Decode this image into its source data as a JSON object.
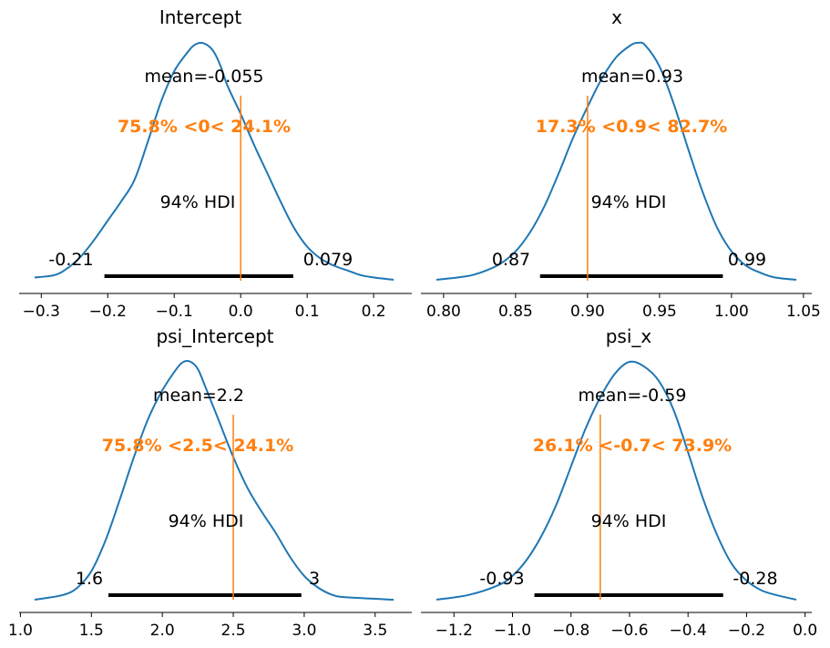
{
  "chart_data": [
    {
      "type": "line",
      "title": "Intercept",
      "xlim": [
        -0.31,
        0.23
      ],
      "xticks": [
        -0.3,
        -0.2,
        -0.1,
        0.0,
        0.1,
        0.2
      ],
      "xtick_labels": [
        "−0.3",
        "−0.2",
        "−0.1",
        "0.0",
        "0.1",
        "0.2"
      ],
      "density": {
        "x": [
          -0.31,
          -0.28,
          -0.26,
          -0.24,
          -0.22,
          -0.2,
          -0.18,
          -0.16,
          -0.14,
          -0.12,
          -0.1,
          -0.08,
          -0.07,
          -0.06,
          -0.05,
          -0.04,
          -0.03,
          -0.02,
          0.0,
          0.02,
          0.04,
          0.06,
          0.08,
          0.1,
          0.12,
          0.14,
          0.16,
          0.18,
          0.2,
          0.23
        ],
        "y": [
          0.01,
          0.02,
          0.05,
          0.1,
          0.17,
          0.25,
          0.33,
          0.42,
          0.58,
          0.75,
          0.88,
          0.96,
          0.99,
          1.0,
          0.99,
          0.96,
          0.9,
          0.82,
          0.7,
          0.57,
          0.45,
          0.33,
          0.22,
          0.14,
          0.09,
          0.06,
          0.04,
          0.02,
          0.01,
          0.0
        ]
      },
      "mean_label": "mean=-0.055",
      "ref_value": 0.0,
      "ref_label": "75.8% <0< 24.1%",
      "hdi": [
        -0.205,
        0.079
      ],
      "hdi_label": "94% HDI",
      "hdi_low_label": "-0.21",
      "hdi_high_label": "0.079"
    },
    {
      "type": "line",
      "title": "x",
      "xlim": [
        0.795,
        1.045
      ],
      "xticks": [
        0.8,
        0.85,
        0.9,
        0.95,
        1.0,
        1.05
      ],
      "xtick_labels": [
        "0.80",
        "0.85",
        "0.90",
        "0.95",
        "1.00",
        "1.05"
      ],
      "density": {
        "x": [
          0.795,
          0.81,
          0.82,
          0.83,
          0.84,
          0.85,
          0.86,
          0.87,
          0.88,
          0.89,
          0.9,
          0.91,
          0.92,
          0.93,
          0.935,
          0.94,
          0.95,
          0.96,
          0.97,
          0.98,
          0.99,
          1.0,
          1.01,
          1.02,
          1.03,
          1.045
        ],
        "y": [
          0.0,
          0.01,
          0.02,
          0.04,
          0.07,
          0.12,
          0.2,
          0.31,
          0.45,
          0.6,
          0.73,
          0.85,
          0.94,
          0.99,
          1.0,
          0.99,
          0.9,
          0.74,
          0.55,
          0.37,
          0.22,
          0.12,
          0.06,
          0.03,
          0.01,
          0.0
        ]
      },
      "mean_label": "mean=0.93",
      "ref_value": 0.9,
      "ref_label": "17.3% <0.9< 82.7%",
      "hdi": [
        0.867,
        0.994
      ],
      "hdi_label": "94% HDI",
      "hdi_low_label": "0.87",
      "hdi_high_label": "0.99"
    },
    {
      "type": "line",
      "title": "psi_Intercept",
      "xlim": [
        1.1,
        3.63
      ],
      "xticks": [
        1.0,
        1.5,
        2.0,
        2.5,
        3.0,
        3.5
      ],
      "xtick_labels": [
        "1.0",
        "1.5",
        "2.0",
        "2.5",
        "3.0",
        "3.5"
      ],
      "density": {
        "x": [
          1.1,
          1.3,
          1.4,
          1.5,
          1.6,
          1.7,
          1.8,
          1.9,
          2.0,
          2.1,
          2.15,
          2.2,
          2.25,
          2.3,
          2.4,
          2.5,
          2.6,
          2.7,
          2.8,
          2.9,
          3.0,
          3.1,
          3.2,
          3.3,
          3.63
        ],
        "y": [
          0.0,
          0.02,
          0.05,
          0.12,
          0.25,
          0.42,
          0.6,
          0.76,
          0.88,
          0.97,
          1.0,
          1.0,
          0.97,
          0.9,
          0.75,
          0.6,
          0.47,
          0.37,
          0.28,
          0.18,
          0.1,
          0.05,
          0.02,
          0.01,
          0.0
        ]
      },
      "mean_label": "mean=2.2",
      "ref_value": 2.5,
      "ref_label": "75.8% <2.5< 24.1%",
      "hdi": [
        1.62,
        2.98
      ],
      "hdi_label": "94% HDI",
      "hdi_low_label": "1.6",
      "hdi_high_label": "3"
    },
    {
      "type": "line",
      "title": "psi_x",
      "xlim": [
        -1.26,
        -0.03
      ],
      "xticks": [
        -1.2,
        -1.0,
        -0.8,
        -0.6,
        -0.4,
        -0.2,
        0.0
      ],
      "xtick_labels": [
        "−1.2",
        "−1.0",
        "−0.8",
        "−0.6",
        "−0.4",
        "−0.2",
        "0.0"
      ],
      "density": {
        "x": [
          -1.26,
          -1.15,
          -1.05,
          -1.0,
          -0.95,
          -0.9,
          -0.85,
          -0.8,
          -0.75,
          -0.7,
          -0.65,
          -0.6,
          -0.55,
          -0.5,
          -0.45,
          -0.4,
          -0.35,
          -0.3,
          -0.25,
          -0.2,
          -0.15,
          -0.1,
          -0.03
        ],
        "y": [
          0.0,
          0.02,
          0.06,
          0.1,
          0.17,
          0.27,
          0.4,
          0.56,
          0.72,
          0.85,
          0.95,
          1.0,
          0.98,
          0.92,
          0.8,
          0.62,
          0.43,
          0.27,
          0.15,
          0.08,
          0.04,
          0.02,
          0.0
        ]
      },
      "mean_label": "mean=-0.59",
      "ref_value": -0.7,
      "ref_label": "26.1% <-0.7< 73.9%",
      "hdi": [
        -0.925,
        -0.28
      ],
      "hdi_label": "94% HDI",
      "hdi_low_label": "-0.93",
      "hdi_high_label": "-0.28"
    }
  ],
  "colors": {
    "density": "#1f77b4",
    "reference": "#ff7f0e",
    "hdi": "#000000",
    "axis": "#000000"
  }
}
